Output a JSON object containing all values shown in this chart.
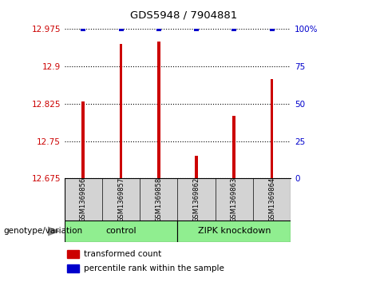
{
  "title": "GDS5948 / 7904881",
  "samples": [
    "GSM1369856",
    "GSM1369857",
    "GSM1369858",
    "GSM1369862",
    "GSM1369863",
    "GSM1369864"
  ],
  "bar_values": [
    12.83,
    12.945,
    12.95,
    12.72,
    12.8,
    12.875
  ],
  "percentile_values": [
    100,
    100,
    100,
    100,
    100,
    100
  ],
  "y_min": 12.675,
  "y_max": 12.975,
  "y_ticks": [
    12.675,
    12.75,
    12.825,
    12.9,
    12.975
  ],
  "y_tick_labels": [
    "12.675",
    "12.75",
    "12.825",
    "12.9",
    "12.975"
  ],
  "y2_ticks": [
    0,
    25,
    50,
    75,
    100
  ],
  "groups": [
    {
      "label": "control",
      "indices": [
        0,
        1,
        2
      ],
      "color": "#90EE90"
    },
    {
      "label": "ZIPK knockdown",
      "indices": [
        3,
        4,
        5
      ],
      "color": "#90EE90"
    }
  ],
  "bar_color": "#CC0000",
  "dot_color": "#0000CC",
  "bar_width": 0.08,
  "legend_items": [
    {
      "label": "transformed count",
      "color": "#CC0000"
    },
    {
      "label": "percentile rank within the sample",
      "color": "#0000CC"
    }
  ],
  "genotype_label": "genotype/variation"
}
